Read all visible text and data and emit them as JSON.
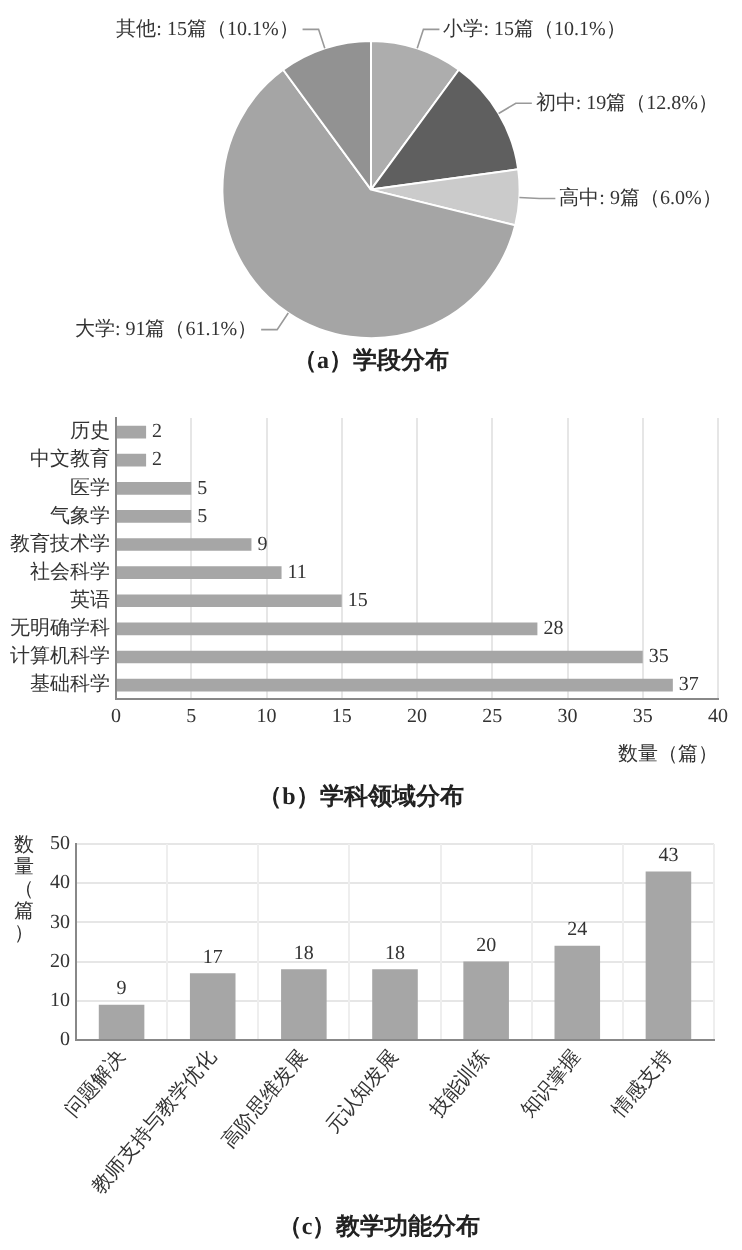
{
  "chart_data": [
    {
      "type": "pie",
      "title": "（a）学段分布",
      "categories": [
        "小学",
        "初中",
        "高中",
        "大学",
        "其他"
      ],
      "values": [
        15,
        19,
        9,
        91,
        15
      ],
      "value_labels": [
        "15篇（10.1%）",
        "19篇（12.8%）",
        "9篇（6.0%）",
        "91篇（61.1%）",
        "15篇（10.1%）"
      ],
      "colors": [
        "#adadad",
        "#5f5f5f",
        "#cbcbcb",
        "#a5a5a5",
        "#929292"
      ]
    },
    {
      "type": "bar",
      "orientation": "horizontal",
      "title": "（b）学科领域分布",
      "xlabel": "数量（篇）",
      "categories": [
        "历史",
        "中文教育",
        "医学",
        "气象学",
        "教育技术学",
        "社会科学",
        "英语",
        "无明确学科",
        "计算机科学",
        "基础科学"
      ],
      "values": [
        2,
        2,
        5,
        5,
        9,
        11,
        15,
        28,
        35,
        37
      ],
      "color": "#a6a6a6",
      "xlim": [
        0,
        40
      ],
      "xticks": [
        0,
        5,
        10,
        15,
        20,
        25,
        30,
        35,
        40
      ],
      "grid": "x",
      "data_labels": true
    },
    {
      "type": "bar",
      "title": "（c）教学功能分布",
      "ylabel": "数量（篇）",
      "categories": [
        "问题解决",
        "教师支持与教学优化",
        "高阶思维发展",
        "元认知发展",
        "技能训练",
        "知识掌握",
        "情感支持"
      ],
      "values": [
        9,
        17,
        18,
        18,
        20,
        24,
        43
      ],
      "color": "#a6a6a6",
      "ylim": [
        0,
        50
      ],
      "yticks": [
        0,
        10,
        20,
        30,
        40,
        50
      ],
      "grid": true,
      "data_labels": true
    }
  ]
}
